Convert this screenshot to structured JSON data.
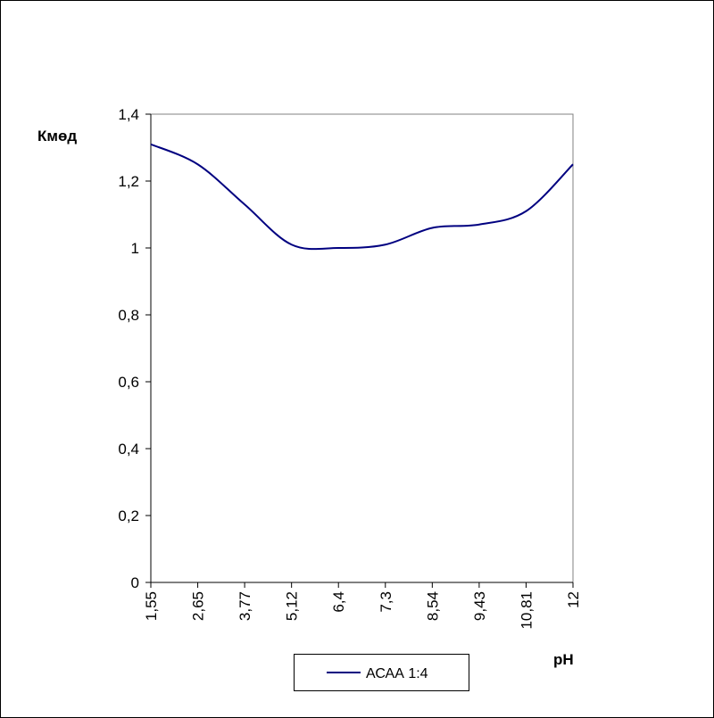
{
  "chart_data": {
    "type": "line",
    "ylabel": "Кмөд",
    "xlabel": "pH",
    "categories": [
      "1,55",
      "2,65",
      "3,77",
      "5,12",
      "6,4",
      "7,3",
      "8,54",
      "9,43",
      "10,81",
      "12"
    ],
    "y_tick_labels": [
      "0",
      "0,2",
      "0,4",
      "0,6",
      "0,8",
      "1",
      "1,2",
      "1,4"
    ],
    "ylim": [
      0,
      1.4
    ],
    "grid": false,
    "legend_position": "bottom",
    "series": [
      {
        "name": "АСАА 1:4",
        "color": "#000080",
        "values": [
          1.31,
          1.25,
          1.13,
          1.01,
          1.0,
          1.01,
          1.06,
          1.07,
          1.11,
          1.25
        ]
      }
    ]
  }
}
